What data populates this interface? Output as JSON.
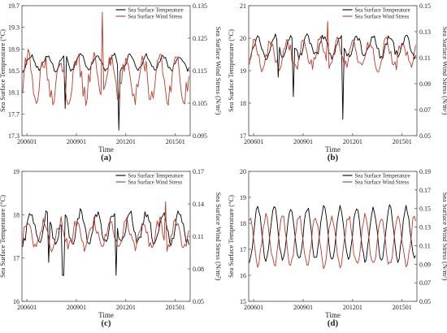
{
  "chart_data": [
    {
      "panel_label": "(a)",
      "type": "line",
      "xlabel": "Time",
      "ylabel": "Sea Surface Temperature (°C)",
      "y2label": "Sea Surface Wind Stress (N/m²)",
      "x_range": [
        2005.7,
        2015.9
      ],
      "x_ticks": [
        {
          "label": "200601",
          "x": 2006.0
        },
        {
          "label": "200901",
          "x": 2009.0
        },
        {
          "label": "201201",
          "x": 2012.0
        },
        {
          "label": "201501",
          "x": 2015.0
        }
      ],
      "ylim": [
        17.3,
        19.7
      ],
      "y_ticks": [
        "17.3",
        "17.7",
        "18.1",
        "18.5",
        "18.9",
        "19.3",
        "19.7"
      ],
      "y2lim": [
        0.095,
        0.135
      ],
      "y2_ticks": [
        "0.095",
        "0.105",
        "0.115",
        "0.125",
        "0.135"
      ],
      "legend_position": "top-center",
      "series": [
        {
          "name": "Sea Surface Temperature",
          "axis": "left",
          "color": "#000000",
          "mean": 18.65,
          "amplitude": 0.14,
          "noise": 0.05,
          "dips": [
            {
              "x": 2008.3,
              "y": 17.8
            },
            {
              "x": 2011.6,
              "y": 17.4
            }
          ]
        },
        {
          "name": "Sea Surface Wind Stress",
          "axis": "right",
          "color": "#c0392b",
          "mean": 0.113,
          "amplitude": 0.006,
          "noise": 0.003,
          "peaks": [
            {
              "x": 2010.6,
              "y": 0.133
            }
          ]
        }
      ]
    },
    {
      "panel_label": "(b)",
      "type": "line",
      "xlabel": "Time",
      "ylabel": "Sea Surface Temperature (°C)",
      "y2label": "Sea Surface Wind Stress (N/m²)",
      "x_range": [
        2005.7,
        2015.9
      ],
      "x_ticks": [
        {
          "label": "200601",
          "x": 2006.0
        },
        {
          "label": "200901",
          "x": 2009.0
        },
        {
          "label": "201201",
          "x": 2012.0
        },
        {
          "label": "201501",
          "x": 2015.0
        }
      ],
      "ylim": [
        17,
        21
      ],
      "y_ticks": [
        "17",
        "18",
        "19",
        "20",
        "21"
      ],
      "y2lim": [
        0.05,
        0.15
      ],
      "y2_ticks": [
        "0.05",
        "0.07",
        "0.09",
        "0.11",
        "0.13",
        "0.15"
      ],
      "legend_position": "top-center",
      "series": [
        {
          "name": "Sea Surface Temperature",
          "axis": "left",
          "color": "#000000",
          "mean": 19.75,
          "amplitude": 0.3,
          "noise": 0.12,
          "dips": [
            {
              "x": 2008.4,
              "y": 18.2
            },
            {
              "x": 2011.4,
              "y": 17.5
            },
            {
              "x": 2007.5,
              "y": 18.8
            }
          ]
        },
        {
          "name": "Sea Surface Wind Stress",
          "axis": "right",
          "color": "#c0392b",
          "mean": 0.113,
          "amplitude": 0.01,
          "noise": 0.005,
          "peaks": [
            {
              "x": 2010.5,
              "y": 0.138
            }
          ]
        }
      ]
    },
    {
      "panel_label": "(c)",
      "type": "line",
      "xlabel": "Time",
      "ylabel": "Sea Surface Temperature (°C)",
      "y2label": "Sea Surface Wind Stress (N/m²)",
      "x_range": [
        2005.7,
        2015.9
      ],
      "x_ticks": [
        {
          "label": "200601",
          "x": 2006.0
        },
        {
          "label": "200901",
          "x": 2009.0
        },
        {
          "label": "201201",
          "x": 2012.0
        },
        {
          "label": "201501",
          "x": 2015.0
        }
      ],
      "ylim": [
        16,
        19
      ],
      "y_ticks": [
        "16",
        "17",
        "18",
        "19"
      ],
      "y2lim": [
        0.05,
        0.17
      ],
      "y2_ticks": [
        "0.05",
        "0.08",
        "0.11",
        "0.14",
        "0.17"
      ],
      "legend_position": "top-center",
      "series": [
        {
          "name": "Sea Surface Temperature",
          "axis": "left",
          "color": "#000000",
          "mean": 17.7,
          "amplitude": 0.35,
          "noise": 0.1,
          "dips": [
            {
              "x": 2007.3,
              "y": 16.9
            },
            {
              "x": 2008.2,
              "y": 16.6
            },
            {
              "x": 2011.4,
              "y": 16.6
            }
          ]
        },
        {
          "name": "Sea Surface Wind Stress",
          "axis": "right",
          "color": "#c0392b",
          "mean": 0.112,
          "amplitude": 0.012,
          "noise": 0.005,
          "peaks": [
            {
              "x": 2014.4,
              "y": 0.142
            }
          ]
        }
      ]
    },
    {
      "panel_label": "(d)",
      "type": "line",
      "xlabel": "Time",
      "ylabel": "Sea Surface Temperature (°C)",
      "y2label": "Sea Surface Wind Stress (N/m²)",
      "x_range": [
        2005.7,
        2015.9
      ],
      "x_ticks": [
        {
          "label": "200601",
          "x": 2006.0
        },
        {
          "label": "200901",
          "x": 2009.0
        },
        {
          "label": "201201",
          "x": 2012.0
        },
        {
          "label": "201501",
          "x": 2015.0
        }
      ],
      "ylim": [
        15,
        20
      ],
      "y_ticks": [
        "15",
        "16",
        "17",
        "18",
        "19",
        "20"
      ],
      "y2lim": [
        0.05,
        0.19
      ],
      "y2_ticks": [
        "0.05",
        "0.07",
        "0.09",
        "0.11",
        "0.13",
        "0.15",
        "0.17",
        "0.19"
      ],
      "legend_position": "top-center",
      "series": [
        {
          "name": "Sea Surface Temperature",
          "axis": "left",
          "color": "#000000",
          "mean": 17.6,
          "amplitude": 1.0,
          "noise": 0.12,
          "phase": 0.0
        },
        {
          "name": "Sea Surface Wind Stress",
          "axis": "right",
          "color": "#c0392b",
          "mean": 0.115,
          "amplitude": 0.026,
          "noise": 0.004,
          "phase": 3.1416
        }
      ]
    }
  ]
}
